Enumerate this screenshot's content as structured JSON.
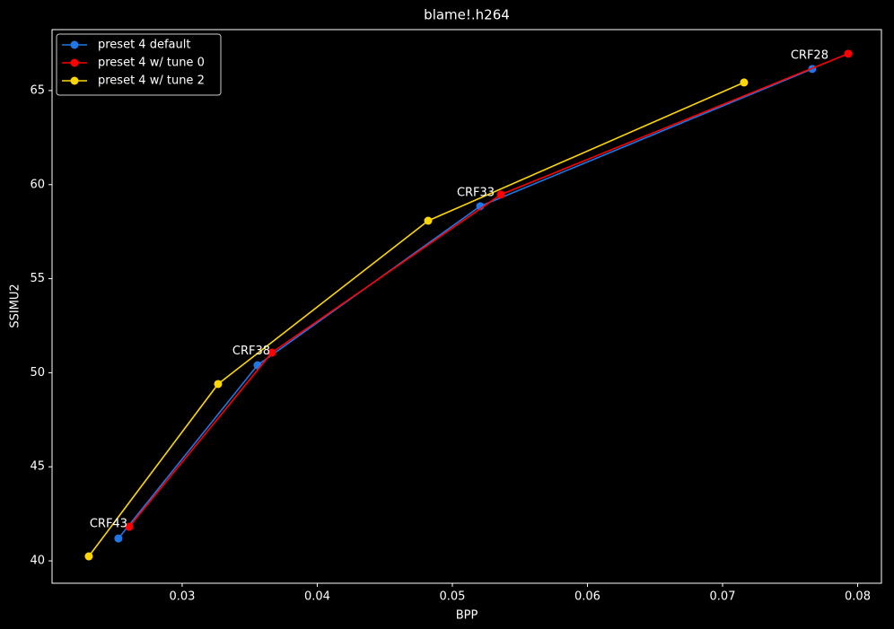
{
  "chart_data": {
    "type": "line",
    "title": "blame!.h264",
    "xlabel": "BPP",
    "ylabel": "SSIMU2",
    "xlim": [
      0.02037,
      0.08176
    ],
    "ylim": [
      38.81,
      68.24
    ],
    "xticks": [
      0.03,
      0.04,
      0.05,
      0.06,
      0.07,
      0.08
    ],
    "yticks": [
      40,
      45,
      50,
      55,
      60,
      65
    ],
    "grid": false,
    "legend": "upper left",
    "series": [
      {
        "name": "preset 4 default",
        "color": "#1f77e8",
        "x": [
          0.02528,
          0.03558,
          0.05206,
          0.07664
        ],
        "values": [
          41.19,
          50.4,
          58.85,
          66.15
        ]
      },
      {
        "name": "preset 4 w/ tune 0",
        "color": "#ff0000",
        "x": [
          0.02608,
          0.03664,
          0.05359,
          0.0793
        ],
        "values": [
          41.81,
          51.07,
          59.47,
          66.96
        ]
      },
      {
        "name": "preset 4 w/ tune 2",
        "color": "#ffd700",
        "x": [
          0.02309,
          0.03266,
          0.04821,
          0.07159
        ],
        "values": [
          40.24,
          49.4,
          58.08,
          65.43
        ]
      }
    ],
    "annotations": [
      {
        "text": "CRF43",
        "x": 0.02455,
        "y": 41.96
      },
      {
        "text": "CRF38",
        "x": 0.03512,
        "y": 51.14
      },
      {
        "text": "CRF33",
        "x": 0.05173,
        "y": 59.56
      },
      {
        "text": "CRF28",
        "x": 0.07644,
        "y": 66.86
      }
    ]
  }
}
